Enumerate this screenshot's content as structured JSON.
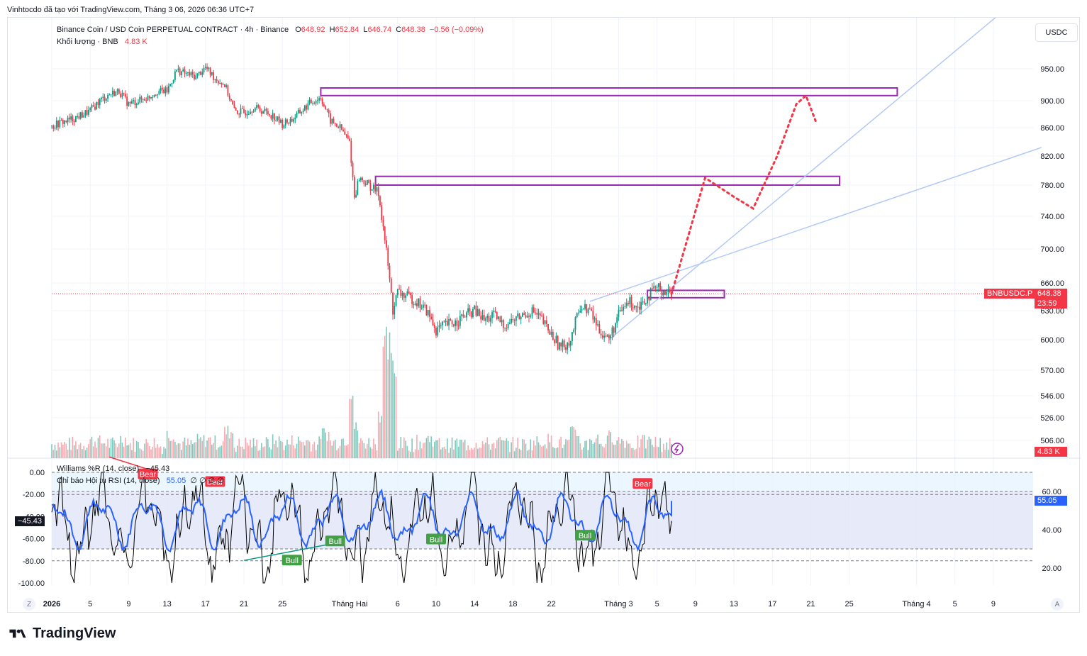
{
  "header": {
    "text": "Vinhtocdo đã tạo với TradingView.com, Tháng 3 06, 2026 06:36 UTC+7"
  },
  "legend": {
    "symbol": "Binance Coin / USD Coin PERPETUAL CONTRACT · 4h · Binance",
    "o_label": "O",
    "o_value": "648.92",
    "h_label": "H",
    "h_value": "652.84",
    "l_label": "L",
    "l_value": "646.74",
    "c_label": "C",
    "c_value": "648.38",
    "change": "−0.56 (−0.09%)",
    "volume_label": "Khối lượng · BNB",
    "volume_value": "4.83 K",
    "wr_label": "Williams %R (14, close)",
    "wr_value": "−45.43",
    "rsi_label": "Chỉ báo Hội tụ RSI (14, close)",
    "rsi_value": "55.05",
    "rsi_zeros": "∅ ∅ ∅ ∅"
  },
  "currency": "USDC",
  "last_price": {
    "symbol_tag": "BNBUSDC.P",
    "price": "648.38",
    "countdown": "23:59",
    "volume_tag": "4.83 K"
  },
  "indicator_tags": {
    "wr": "−45.43",
    "rsi": "55.05"
  },
  "brand": "TradingView",
  "buttons": {
    "z": "Z",
    "a": "A"
  },
  "colors": {
    "up": "#089981",
    "down": "#f23645",
    "rsi": "#2962ff",
    "wr": "#000000",
    "box": "#9c27b0",
    "projection": "#f23645",
    "trend": "#b2c8f5"
  },
  "chart_data": {
    "type": "candlestick",
    "symbol": "BNBUSDC.P",
    "timeframe": "4h",
    "price_axis": {
      "ticks": [
        950,
        900,
        860,
        820,
        780,
        740,
        700,
        660,
        630,
        600,
        570,
        546,
        526,
        506
      ],
      "tick_labels": [
        "950.00",
        "900.00",
        "860.00",
        "820.00",
        "780.00",
        "740.00",
        "700.00",
        "660.00",
        "630.00",
        "600.00",
        "570.00",
        "546.00",
        "526.00",
        "506.00"
      ]
    },
    "time_axis": {
      "labels": [
        "2026",
        "5",
        "9",
        "13",
        "17",
        "21",
        "25",
        "Tháng Hai",
        "6",
        "10",
        "14",
        "18",
        "22",
        "Tháng 3",
        "5",
        "9",
        "13",
        "17",
        "21",
        "25",
        "Tháng 4",
        "5",
        "9"
      ],
      "days": [
        1,
        5,
        9,
        13,
        17,
        21,
        25,
        32,
        37,
        41,
        45,
        49,
        53,
        60,
        64,
        68,
        72,
        76,
        80,
        84,
        91,
        95,
        99
      ]
    },
    "price_path": [
      [
        1,
        862
      ],
      [
        2,
        868
      ],
      [
        3,
        872
      ],
      [
        4,
        878
      ],
      [
        5,
        885
      ],
      [
        6,
        900
      ],
      [
        7,
        910
      ],
      [
        8,
        915
      ],
      [
        9,
        895
      ],
      [
        10,
        900
      ],
      [
        11,
        905
      ],
      [
        12,
        915
      ],
      [
        13,
        915
      ],
      [
        14,
        948
      ],
      [
        15,
        942
      ],
      [
        16,
        938
      ],
      [
        17,
        952
      ],
      [
        18,
        935
      ],
      [
        19,
        925
      ],
      [
        20,
        885
      ],
      [
        21,
        882
      ],
      [
        22,
        890
      ],
      [
        23,
        885
      ],
      [
        24,
        878
      ],
      [
        25,
        865
      ],
      [
        26,
        872
      ],
      [
        27,
        885
      ],
      [
        28,
        898
      ],
      [
        29,
        905
      ],
      [
        30,
        870
      ],
      [
        31,
        860
      ],
      [
        32,
        840
      ],
      [
        32.5,
        765
      ],
      [
        33,
        790
      ],
      [
        34,
        780
      ],
      [
        35,
        770
      ],
      [
        35.8,
        700
      ],
      [
        36.5,
        630
      ],
      [
        37,
        650
      ],
      [
        38,
        645
      ],
      [
        39,
        640
      ],
      [
        40,
        630
      ],
      [
        41,
        610
      ],
      [
        42,
        615
      ],
      [
        43,
        618
      ],
      [
        44,
        625
      ],
      [
        45,
        630
      ],
      [
        46,
        620
      ],
      [
        47,
        625
      ],
      [
        48,
        615
      ],
      [
        49,
        620
      ],
      [
        50,
        625
      ],
      [
        51,
        630
      ],
      [
        52,
        620
      ],
      [
        53,
        605
      ],
      [
        54,
        592
      ],
      [
        55,
        600
      ],
      [
        56,
        635
      ],
      [
        57,
        630
      ],
      [
        58,
        610
      ],
      [
        59,
        600
      ],
      [
        60,
        625
      ],
      [
        61,
        640
      ],
      [
        62,
        635
      ],
      [
        63,
        645
      ],
      [
        64,
        655
      ],
      [
        65,
        650
      ],
      [
        65.5,
        648.38
      ]
    ],
    "zones": [
      {
        "from_day": 29,
        "to_day": 89,
        "high": 920,
        "low": 908
      },
      {
        "from_day": 34.7,
        "to_day": 83,
        "high": 792,
        "low": 780
      },
      {
        "from_day": 63,
        "to_day": 71,
        "high": 652,
        "low": 644
      }
    ],
    "projection_path": [
      [
        65.5,
        648
      ],
      [
        69,
        790
      ],
      [
        72,
        765
      ],
      [
        74,
        750
      ],
      [
        76.5,
        820
      ],
      [
        78.5,
        895
      ],
      [
        79.5,
        908
      ],
      [
        80.5,
        870
      ]
    ],
    "trendlines": [
      {
        "from": [
          57,
          640
        ],
        "to": [
          104,
          832
        ]
      },
      {
        "from": [
          59,
          600
        ],
        "to": [
          100,
          1040
        ]
      }
    ],
    "volume_last": "4.83 K",
    "wr": {
      "label": "Williams %R (14, close)",
      "last": -45.43,
      "ticks": [
        0,
        -20,
        -40,
        -60,
        -80,
        -100
      ],
      "tick_labels": [
        "0.00",
        "-20.00",
        "-40.00",
        "-60.00",
        "-80.00",
        "-100.00"
      ],
      "levels": [
        -20,
        -80
      ]
    },
    "rsi": {
      "label": "Chỉ báo Hội tụ RSI (14, close)",
      "last": 55.05,
      "ticks": [
        60,
        40,
        20
      ],
      "tick_labels": [
        "60.00",
        "40.00",
        "20.00"
      ],
      "levels": [
        70,
        60,
        30
      ]
    },
    "signals": [
      {
        "text": "Bear",
        "day": 11,
        "value": 69
      },
      {
        "text": "Bear",
        "day": 18,
        "value": 65
      },
      {
        "text": "Bull",
        "day": 26,
        "value": 24
      },
      {
        "text": "Bull",
        "day": 30.5,
        "value": 34
      },
      {
        "text": "Bull",
        "day": 41,
        "value": 35
      },
      {
        "text": "Bull",
        "day": 56.5,
        "value": 37
      },
      {
        "text": "Bear",
        "day": 62.5,
        "value": 64
      }
    ]
  }
}
